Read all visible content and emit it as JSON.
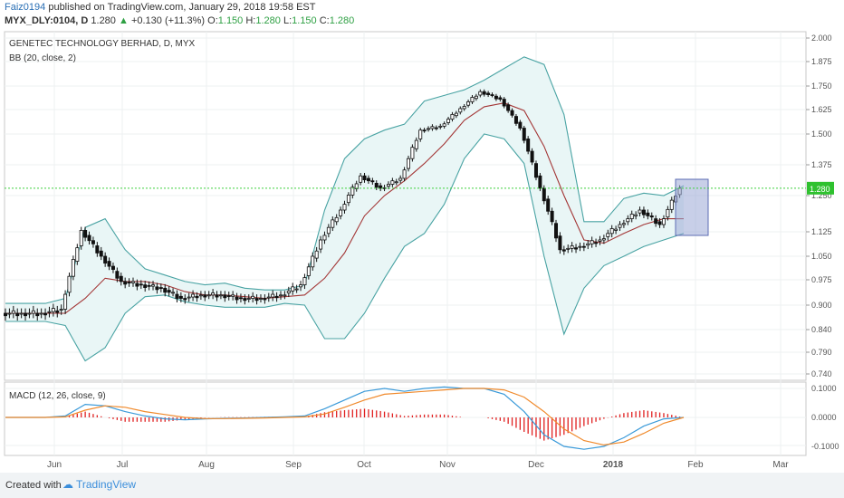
{
  "header": {
    "user": "Faiz0194",
    "published": "published on TradingView.com, January 29, 2018 19:58 EST",
    "symbol": "MYX_DLY:0104, D",
    "last": "1.280",
    "change": "+0.130 (+11.3%)",
    "o_label": "O:",
    "o_value": "1.150",
    "h_label": "H:",
    "h_value": "1.280",
    "l_label": "L:",
    "l_value": "1.150",
    "c_label": "C:",
    "c_value": "1.280"
  },
  "footer": {
    "created": "Created with",
    "brand": "TradingView"
  },
  "colors": {
    "band": "#49a3a3",
    "band_fill": "#e9f6f6",
    "basis": "#a33636",
    "macd": "#3a9ad9",
    "signal": "#f08a2c",
    "hist": "#e02020",
    "last_line": "#3ed13e",
    "last_bg": "#2fc12f",
    "highlight": "#9ba7d6"
  },
  "chart_data": [
    {
      "type": "line",
      "title": "GENETEC TECHNOLOGY BERHAD, D, MYX",
      "indicator_label": "BB (20, close, 2)",
      "x_ticks": [
        "Jun",
        "Jul",
        "Aug",
        "Sep",
        "Oct",
        "Nov",
        "Dec",
        "2018",
        "Feb",
        "Mar"
      ],
      "y_ticks": [
        "2.000",
        "1.875",
        "1.750",
        "1.625",
        "1.500",
        "1.375",
        "1.250",
        "1.125",
        "1.050",
        "0.975",
        "0.900",
        "0.840",
        "0.790",
        "0.740"
      ],
      "last_value": "1.280",
      "x_index": [
        0,
        5,
        10,
        15,
        20,
        25,
        30,
        35,
        40,
        45,
        50,
        55,
        60,
        65,
        70,
        75,
        80,
        85,
        90,
        95,
        100,
        105,
        110,
        115,
        120,
        125,
        130,
        135,
        140,
        145,
        150,
        155,
        160,
        165,
        170
      ],
      "series": [
        {
          "name": "Close",
          "values": [
            0.88,
            0.88,
            0.88,
            0.89,
            1.13,
            1.05,
            0.97,
            0.96,
            0.95,
            0.92,
            0.93,
            0.93,
            0.92,
            0.92,
            0.93,
            0.96,
            1.1,
            1.2,
            1.33,
            1.28,
            1.32,
            1.52,
            1.54,
            1.63,
            1.72,
            1.68,
            1.53,
            1.28,
            1.07,
            1.08,
            1.1,
            1.15,
            1.2,
            1.15,
            1.28
          ]
        },
        {
          "name": "Basis",
          "values": [
            0.88,
            0.88,
            0.88,
            0.88,
            0.92,
            0.98,
            0.97,
            0.97,
            0.96,
            0.94,
            0.93,
            0.93,
            0.925,
            0.92,
            0.925,
            0.93,
            0.98,
            1.06,
            1.18,
            1.25,
            1.31,
            1.38,
            1.46,
            1.57,
            1.64,
            1.66,
            1.62,
            1.45,
            1.25,
            1.1,
            1.09,
            1.12,
            1.15,
            1.17,
            1.17
          ]
        },
        {
          "name": "Upper",
          "values": [
            0.905,
            0.905,
            0.905,
            0.92,
            1.14,
            1.17,
            1.07,
            1.01,
            0.99,
            0.97,
            0.96,
            0.965,
            0.95,
            0.945,
            0.945,
            0.96,
            1.2,
            1.4,
            1.48,
            1.52,
            1.55,
            1.67,
            1.7,
            1.73,
            1.78,
            1.84,
            1.9,
            1.86,
            1.6,
            1.16,
            1.16,
            1.24,
            1.26,
            1.25,
            1.29
          ]
        },
        {
          "name": "Lower",
          "values": [
            0.86,
            0.86,
            0.86,
            0.85,
            0.77,
            0.8,
            0.88,
            0.925,
            0.93,
            0.91,
            0.9,
            0.895,
            0.895,
            0.895,
            0.905,
            0.9,
            0.82,
            0.82,
            0.88,
            0.98,
            1.08,
            1.12,
            1.22,
            1.4,
            1.5,
            1.48,
            1.38,
            1.05,
            0.83,
            0.95,
            1.02,
            1.05,
            1.08,
            1.1,
            1.12
          ]
        }
      ]
    },
    {
      "type": "line",
      "title": "MACD (12, 26, close, 9)",
      "y_ticks": [
        "0.1000",
        "0.0000",
        "-0.1000"
      ],
      "x_index": [
        0,
        5,
        10,
        15,
        20,
        25,
        30,
        35,
        40,
        45,
        50,
        55,
        60,
        65,
        70,
        75,
        80,
        85,
        90,
        95,
        100,
        105,
        110,
        115,
        120,
        125,
        130,
        135,
        140,
        145,
        150,
        155,
        160,
        165,
        170
      ],
      "series": [
        {
          "name": "MACD",
          "values": [
            0.0,
            0.0,
            0.0,
            0.005,
            0.045,
            0.04,
            0.02,
            0.005,
            -0.005,
            -0.008,
            -0.005,
            -0.003,
            -0.002,
            0.0,
            0.002,
            0.005,
            0.03,
            0.06,
            0.09,
            0.1,
            0.09,
            0.1,
            0.105,
            0.1,
            0.1,
            0.08,
            0.02,
            -0.06,
            -0.1,
            -0.11,
            -0.1,
            -0.07,
            -0.03,
            -0.005,
            0.0
          ]
        },
        {
          "name": "Signal",
          "values": [
            0.0,
            0.0,
            0.0,
            0.002,
            0.025,
            0.04,
            0.035,
            0.02,
            0.01,
            0.0,
            -0.004,
            -0.004,
            -0.003,
            -0.002,
            0.0,
            0.002,
            0.012,
            0.035,
            0.06,
            0.08,
            0.085,
            0.09,
            0.095,
            0.1,
            0.1,
            0.095,
            0.07,
            0.02,
            -0.04,
            -0.08,
            -0.095,
            -0.085,
            -0.055,
            -0.02,
            0.0
          ]
        },
        {
          "name": "Histogram",
          "values": [
            0.0,
            0.0,
            0.0,
            0.003,
            0.02,
            0.0,
            -0.015,
            -0.015,
            -0.015,
            -0.008,
            -0.001,
            0.001,
            0.001,
            0.002,
            0.002,
            0.003,
            0.018,
            0.025,
            0.03,
            0.02,
            0.005,
            0.01,
            0.01,
            0.0,
            0.0,
            -0.015,
            -0.05,
            -0.08,
            -0.06,
            -0.03,
            -0.005,
            0.015,
            0.025,
            0.015,
            0.0
          ]
        }
      ]
    }
  ]
}
